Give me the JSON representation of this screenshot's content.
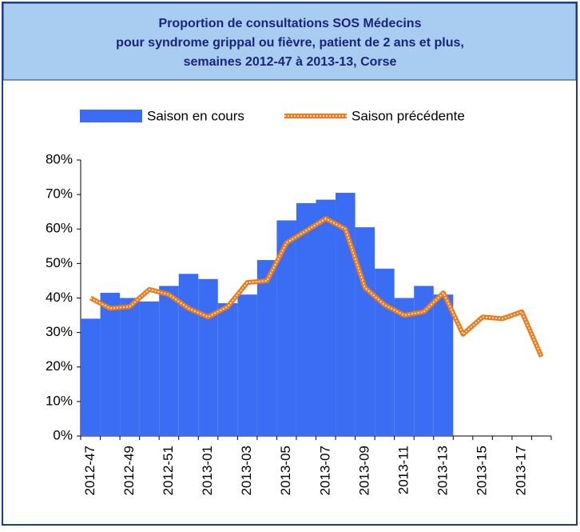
{
  "chart_data": {
    "type": "bar-line",
    "title": [
      "Proportion de consultations SOS Médecins",
      "pour syndrome grippal ou fièvre, patient de 2 ans et plus,",
      "semaines 2012-47 à 2013-13, Corse"
    ],
    "categories": [
      "2012-47",
      null,
      "2012-49",
      null,
      "2012-51",
      null,
      "2013-01",
      null,
      "2013-03",
      null,
      "2013-05",
      null,
      "2013-07",
      null,
      "2013-09",
      null,
      "2013-11",
      null,
      "2013-13",
      null,
      "2013-15",
      null,
      "2013-17",
      null
    ],
    "series": [
      {
        "name": "Saison en cours",
        "type": "bar",
        "color": "#3b6cf4",
        "values": [
          34,
          41.5,
          40,
          39,
          43.5,
          47,
          45.5,
          38.5,
          41,
          51,
          62.5,
          67.5,
          68.5,
          70.5,
          60.5,
          48.5,
          40,
          43.5,
          41,
          null,
          null,
          null,
          null,
          null
        ]
      },
      {
        "name": "Saison précédente",
        "type": "line",
        "color": "#f07a1a",
        "values": [
          40,
          37,
          37.5,
          42.5,
          41,
          37,
          34.5,
          37.5,
          44.5,
          45,
          56,
          59.5,
          63,
          60,
          43,
          38,
          35,
          36,
          41.5,
          29.5,
          34.5,
          34,
          36,
          23
        ]
      }
    ],
    "ylim": [
      0,
      80
    ],
    "yticks": [
      {
        "value": 0,
        "label": "0%"
      },
      {
        "value": 10,
        "label": "10%"
      },
      {
        "value": 20,
        "label": "20%"
      },
      {
        "value": 30,
        "label": "30%"
      },
      {
        "value": 40,
        "label": "40%"
      },
      {
        "value": 50,
        "label": "50%"
      },
      {
        "value": 60,
        "label": "60%"
      },
      {
        "value": 70,
        "label": "70%"
      },
      {
        "value": 80,
        "label": "80%"
      }
    ],
    "legend": "top"
  }
}
